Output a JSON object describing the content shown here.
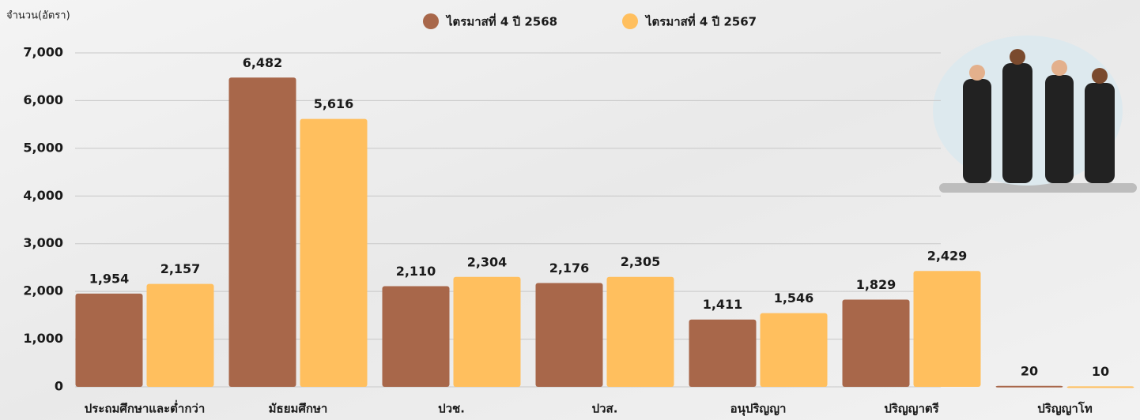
{
  "chart_data": {
    "type": "bar",
    "y_axis_label": "จำนวน(อัตรา)",
    "categories": [
      "ประถมศึกษาและต่ำกว่า",
      "มัธยมศึกษา",
      "ปวช.",
      "ปวส.",
      "อนุปริญญา",
      "ปริญญาตรี",
      "ปริญญาโท"
    ],
    "series": [
      {
        "name": "ไตรมาสที่ 4 ปี 2568",
        "color": "#a8674a",
        "values": [
          1954,
          6482,
          2110,
          2176,
          1411,
          1829,
          20
        ],
        "value_labels": [
          "1,954",
          "6,482",
          "2,110",
          "2,176",
          "1,411",
          "1,829",
          "20"
        ]
      },
      {
        "name": "ไตรมาสที่ 4 ปี 2567",
        "color": "#ffbf5e",
        "values": [
          2157,
          5616,
          2304,
          2305,
          1546,
          2429,
          10
        ],
        "value_labels": [
          "2,157",
          "5,616",
          "2,304",
          "2,305",
          "1,546",
          "2,429",
          "10"
        ]
      }
    ],
    "ylim": [
      0,
      7000
    ],
    "yticks": [
      0,
      {
        "value": 1000,
        "label": "1,000"
      },
      {
        "value": 2000,
        "label": "2,000"
      },
      {
        "value": 3000,
        "label": "3,000"
      },
      {
        "value": 4000,
        "label": "4,000"
      },
      {
        "value": 5000,
        "label": "5,000"
      },
      {
        "value": 6000,
        "label": "6,000"
      },
      {
        "value": 7000,
        "label": "7,000"
      }
    ],
    "grid": true
  }
}
